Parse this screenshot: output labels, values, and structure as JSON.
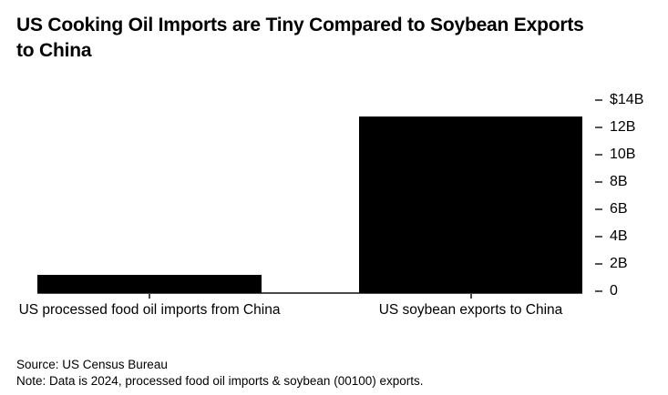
{
  "title_lines": [
    "US Cooking Oil Imports are Tiny Compared to Soybean Exports",
    "to China"
  ],
  "chart_data": {
    "type": "bar",
    "title": "US Cooking Oil Imports are Tiny Compared to Soybean Exports to China",
    "categories": [
      "US processed food oil imports from China",
      "US soybean exports to China"
    ],
    "values": [
      1.3,
      12.8
    ],
    "value_unit": "USD billions",
    "ylim": [
      0,
      14
    ],
    "ytick_step": 2,
    "ytick_labels": [
      "$14B",
      "12B",
      "10B",
      "8B",
      "6B",
      "4B",
      "2B",
      "0"
    ],
    "yaxis_side": "right",
    "grid": false,
    "legend": false,
    "bar_color": "#000000",
    "axis_color": "#4a4a4a"
  },
  "footer": {
    "source": "Source: US Census Bureau",
    "note": "Note: Data is 2024, processed food oil imports & soybean (00100) exports."
  }
}
